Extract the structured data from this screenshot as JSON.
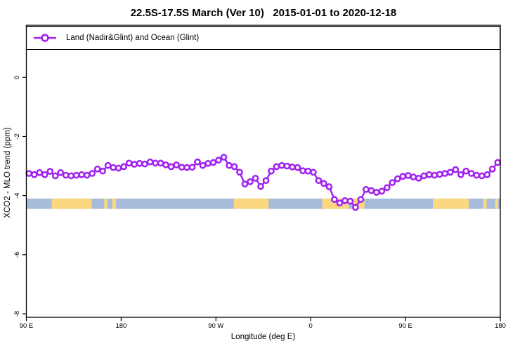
{
  "chart_data": {
    "type": "line",
    "title": "22.5S-17.5S March (Ver 10)   2015-01-01 to 2020-12-18",
    "xlabel": "Longitude (deg E)",
    "ylabel": "XCO2 - MLO trend (ppm)",
    "legend": {
      "label": "Land (Nadir&Glint) and Ocean (Glint)",
      "position": "top",
      "marker": "open-circle-on-line"
    },
    "colors": {
      "series": "#A020F0",
      "marker_fill": "#ffffff",
      "ocean_band": "#A6BCDA",
      "land_band": "#FBD87F",
      "frame": "#000000"
    },
    "x_axis": {
      "label": "Longitude (deg E)",
      "display_range_deg": [
        90,
        540
      ],
      "note": "longitude axis wraps: 90E -> 180 -> 90W -> 0 -> 90E -> 180",
      "ticks": [
        {
          "pos": 90,
          "label": "90 E"
        },
        {
          "pos": 180,
          "label": "180"
        },
        {
          "pos": 270,
          "label": "90 W"
        },
        {
          "pos": 360,
          "label": "0"
        },
        {
          "pos": 450,
          "label": "90 E"
        },
        {
          "pos": 540,
          "label": "180"
        }
      ]
    },
    "y_axis": {
      "label": "XCO2 - MLO trend (ppm)",
      "ylim": [
        -8.15,
        1.75
      ],
      "ticks": [
        {
          "pos": 0,
          "label": "0"
        },
        {
          "pos": -2,
          "label": "-2"
        },
        {
          "pos": -4,
          "label": "-4"
        },
        {
          "pos": -6,
          "label": "-6"
        },
        {
          "pos": -8,
          "label": "-8"
        }
      ]
    },
    "surface_strip": {
      "meaning": "land(yellow)/ocean(blue) map band along longitude",
      "y_range_ppm": [
        -4.1,
        -4.45
      ],
      "land_segments_display_deg": [
        [
          114,
          152
        ],
        [
          164,
          167
        ],
        [
          171.5,
          175
        ],
        [
          287,
          320
        ],
        [
          371,
          396
        ],
        [
          400,
          411
        ],
        [
          476,
          510
        ],
        [
          524,
          527
        ],
        [
          535,
          538
        ]
      ]
    },
    "series": [
      {
        "name": "Land (Nadir&Glint) and Ocean (Glint)",
        "x_start_deg": 92.5,
        "x_step_deg": 5,
        "values": [
          -3.25,
          -3.29,
          -3.22,
          -3.29,
          -3.18,
          -3.33,
          -3.22,
          -3.31,
          -3.33,
          -3.31,
          -3.29,
          -3.31,
          -3.25,
          -3.1,
          -3.17,
          -2.98,
          -3.05,
          -3.07,
          -3.02,
          -2.9,
          -2.94,
          -2.91,
          -2.93,
          -2.86,
          -2.9,
          -2.9,
          -2.96,
          -3.02,
          -2.96,
          -3.04,
          -3.05,
          -3.04,
          -2.86,
          -2.98,
          -2.91,
          -2.88,
          -2.8,
          -2.7,
          -2.98,
          -3.02,
          -3.21,
          -3.61,
          -3.53,
          -3.41,
          -3.69,
          -3.49,
          -3.17,
          -3.02,
          -2.98,
          -3.0,
          -3.03,
          -3.05,
          -3.16,
          -3.17,
          -3.21,
          -3.49,
          -3.59,
          -3.7,
          -4.13,
          -4.25,
          -4.17,
          -4.19,
          -4.4,
          -4.13,
          -3.79,
          -3.83,
          -3.89,
          -3.85,
          -3.73,
          -3.56,
          -3.43,
          -3.35,
          -3.32,
          -3.37,
          -3.41,
          -3.33,
          -3.29,
          -3.31,
          -3.28,
          -3.25,
          -3.21,
          -3.12,
          -3.29,
          -3.17,
          -3.25,
          -3.31,
          -3.33,
          -3.29,
          -3.1,
          -2.88
        ]
      }
    ]
  }
}
